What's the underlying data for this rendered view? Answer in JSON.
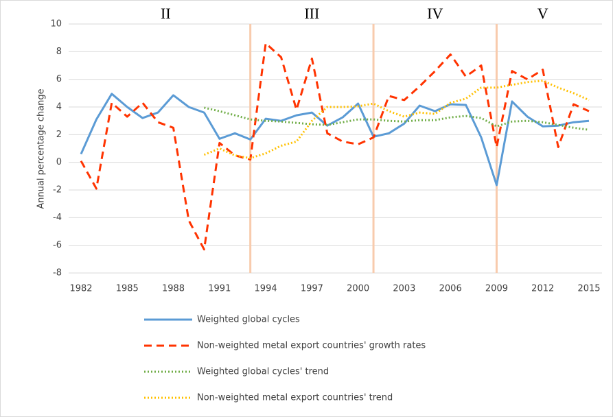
{
  "chart_data": {
    "type": "line",
    "y_axis_label": "Annual percentage change",
    "x": [
      1982,
      1983,
      1984,
      1985,
      1986,
      1987,
      1988,
      1989,
      1990,
      1991,
      1992,
      1993,
      1994,
      1995,
      1996,
      1997,
      1998,
      1999,
      2000,
      2001,
      2002,
      2003,
      2004,
      2005,
      2006,
      2007,
      2008,
      2009,
      2010,
      2011,
      2012,
      2013,
      2014,
      2015
    ],
    "xlim": [
      1982,
      2015
    ],
    "xticks": [
      1982,
      1985,
      1988,
      1991,
      1994,
      1997,
      2000,
      2003,
      2006,
      2009,
      2012,
      2015
    ],
    "ylim": [
      -8,
      10
    ],
    "yticks": [
      -8,
      -6,
      -4,
      -2,
      0,
      2,
      4,
      6,
      8,
      10
    ],
    "grid": true,
    "dividers": [
      1993,
      2001,
      2009
    ],
    "divider_color": "#f8cbad",
    "period_labels": [
      "II",
      "III",
      "IV",
      "V"
    ],
    "legend_position": "bottom",
    "series": [
      {
        "name": "Weighted global cycles",
        "color": "#5b9bd5",
        "style": "solid",
        "values": [
          0.6,
          3.1,
          4.95,
          4.0,
          3.2,
          3.6,
          4.85,
          4.0,
          3.6,
          1.7,
          2.1,
          1.65,
          3.15,
          3.0,
          3.4,
          3.6,
          2.65,
          3.25,
          4.25,
          1.85,
          2.1,
          2.8,
          4.1,
          3.7,
          4.2,
          4.15,
          1.8,
          -1.65,
          4.4,
          3.3,
          2.6,
          2.65,
          2.9,
          3.0
        ]
      },
      {
        "name": "Non-weighted metal export countries' growth rates",
        "color": "#ff3300",
        "style": "dashed",
        "values": [
          0.1,
          -1.9,
          4.3,
          3.3,
          4.3,
          2.9,
          2.5,
          -4.2,
          -6.3,
          1.4,
          0.5,
          0.2,
          8.6,
          7.6,
          3.8,
          7.5,
          2.1,
          1.5,
          1.3,
          1.8,
          4.8,
          4.5,
          5.5,
          6.6,
          7.8,
          6.2,
          7.0,
          1.1,
          6.6,
          6.0,
          6.7,
          1.1,
          4.2,
          3.7
        ]
      },
      {
        "name": "Weighted global cycles' trend",
        "color": "#70ad47",
        "style": "dotted",
        "values": [
          null,
          null,
          null,
          null,
          null,
          null,
          null,
          null,
          3.95,
          3.7,
          3.4,
          3.1,
          3.0,
          2.95,
          2.85,
          2.75,
          2.7,
          2.9,
          3.1,
          3.1,
          3.0,
          2.95,
          3.05,
          3.05,
          3.25,
          3.35,
          3.2,
          2.6,
          2.95,
          3.0,
          2.9,
          2.7,
          2.5,
          2.35
        ]
      },
      {
        "name": "Non-weighted metal export countries' trend",
        "color": "#ffc000",
        "style": "dotted",
        "values": [
          null,
          null,
          null,
          null,
          null,
          null,
          null,
          null,
          0.55,
          1.0,
          0.5,
          0.3,
          0.65,
          1.2,
          1.5,
          3.0,
          4.0,
          4.0,
          4.05,
          4.25,
          3.7,
          3.3,
          3.6,
          3.5,
          4.3,
          4.6,
          5.4,
          5.4,
          5.6,
          5.8,
          5.9,
          5.4,
          5.0,
          4.5
        ]
      }
    ]
  }
}
